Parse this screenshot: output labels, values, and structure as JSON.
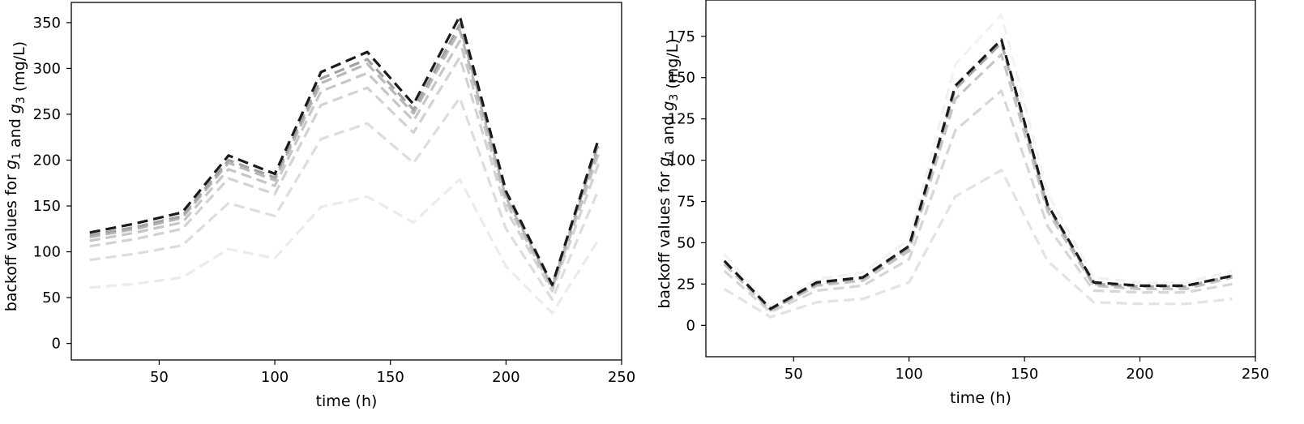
{
  "chart_data": [
    {
      "type": "line",
      "title": "",
      "xlabel": "time (h)",
      "ylabel": "backoff values for g1 and g3 (mg/L)",
      "xlim": [
        12,
        250
      ],
      "ylim": [
        -18,
        372
      ],
      "x_ticks": [
        50,
        100,
        150,
        200,
        250
      ],
      "y_ticks": [
        0,
        50,
        100,
        150,
        200,
        250,
        300,
        350
      ],
      "grid": false,
      "legend": "none",
      "x": [
        20,
        40,
        60,
        80,
        100,
        120,
        140,
        160,
        180,
        200,
        220,
        240
      ],
      "series": [
        {
          "color": "#ebebeb",
          "values": [
            61,
            65,
            72,
            103,
            93,
            149,
            160,
            132,
            179,
            84,
            33,
            113
          ]
        },
        {
          "color": "#dddddd",
          "values": [
            91,
            98,
            107,
            153,
            139,
            223,
            240,
            197,
            268,
            125,
            48,
            168
          ]
        },
        {
          "color": "#d2d2d2",
          "values": [
            106,
            114,
            125,
            180,
            163,
            260,
            279,
            230,
            312,
            146,
            57,
            196
          ]
        },
        {
          "color": "#c6c6c6",
          "values": [
            112,
            121,
            132,
            190,
            172,
            275,
            295,
            243,
            330,
            154,
            60,
            207
          ]
        },
        {
          "color": "#b8b8b8",
          "values": [
            116,
            125,
            137,
            197,
            178,
            284,
            305,
            251,
            342,
            159,
            62,
            214
          ]
        },
        {
          "color": "#a3a3a3",
          "values": [
            118,
            127,
            139,
            200,
            181,
            289,
            310,
            255,
            348,
            162,
            63,
            218
          ]
        },
        {
          "color": "#1a1a1a",
          "values": [
            121,
            131,
            143,
            205,
            185,
            296,
            318,
            261,
            357,
            166,
            64,
            223
          ]
        }
      ]
    },
    {
      "type": "line",
      "title": "",
      "xlabel": "time (h)",
      "ylabel": "backoff values for g1 and g3 (mg/L)",
      "xlim": [
        12,
        250
      ],
      "ylim": [
        -19,
        197
      ],
      "x_ticks": [
        50,
        100,
        150,
        200,
        250
      ],
      "y_ticks": [
        0,
        25,
        50,
        75,
        100,
        125,
        150,
        175
      ],
      "grid": false,
      "legend": "none",
      "x": [
        20,
        40,
        60,
        80,
        100,
        120,
        140,
        160,
        180,
        200,
        220,
        240
      ],
      "series": [
        {
          "color": "#f2f2f2",
          "values": [
            43,
            11,
            28,
            32,
            52,
            158,
            188,
            80,
            29,
            26,
            26,
            33
          ]
        },
        {
          "color": "#e3e3e3",
          "values": [
            22,
            5,
            14,
            16,
            26,
            78,
            94,
            39,
            14,
            13,
            13,
            16
          ]
        },
        {
          "color": "#d6d6d6",
          "values": [
            33,
            8,
            21,
            24,
            40,
            118,
            142,
            60,
            21,
            20,
            20,
            25
          ]
        },
        {
          "color": "#c4c4c4",
          "values": [
            37,
            9,
            24,
            27,
            45,
            137,
            164,
            69,
            24,
            22,
            22,
            29
          ]
        },
        {
          "color": "#a8a8a8",
          "values": [
            39,
            9.5,
            25,
            28.5,
            47,
            143,
            171,
            72,
            25,
            23.5,
            23.5,
            30
          ]
        },
        {
          "color": "#1a1a1a",
          "values": [
            39,
            10,
            26,
            29,
            48,
            145,
            173,
            73,
            26,
            24,
            24,
            30
          ]
        }
      ]
    }
  ]
}
